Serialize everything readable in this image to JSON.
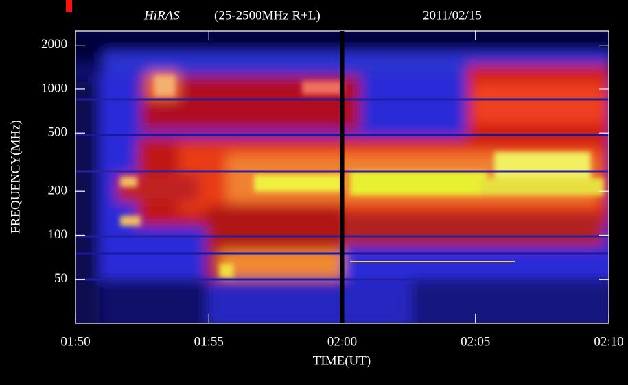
{
  "chart_data": {
    "type": "spectrogram",
    "title_name": "HiRAS",
    "title_range": "(25-2500MHz R+L)",
    "title_date": "2011/02/15",
    "y_label": "FREQUENCY(MHz)",
    "x_label": "TIME(UT)",
    "y_scale": "log",
    "ylim": [
      25,
      2500
    ],
    "yticks": [
      50,
      100,
      200,
      500,
      1000,
      2000
    ],
    "xlim": [
      "01:50",
      "02:10"
    ],
    "xticks": [
      "01:50",
      "01:55",
      "02:00",
      "02:05",
      "02:10"
    ],
    "vertical_line": "02:00"
  }
}
